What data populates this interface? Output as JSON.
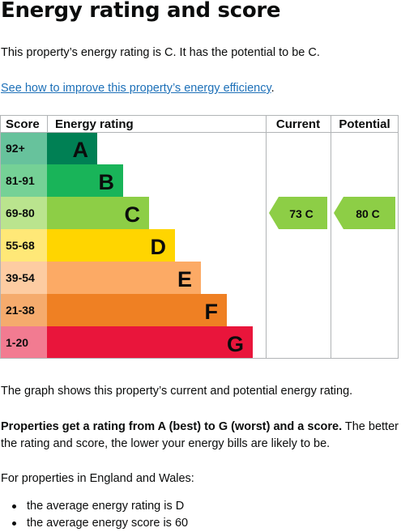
{
  "heading": "Energy rating and score",
  "intro": "This property’s energy rating is C. It has the potential to be C.",
  "improve_link": "See how to improve this property’s energy efficiency",
  "improve_link_suffix": ".",
  "table": {
    "headers": {
      "score": "Score",
      "rating": "Energy rating",
      "current": "Current",
      "potential": "Potential"
    },
    "bands": [
      {
        "score": "92+",
        "letter": "A",
        "color": "#008054",
        "score_bg": "#67c29c"
      },
      {
        "score": "81-91",
        "letter": "B",
        "color": "#19b459",
        "score_bg": "#75d196"
      },
      {
        "score": "69-80",
        "letter": "C",
        "color": "#8dce46",
        "score_bg": "#bae48e"
      },
      {
        "score": "55-68",
        "letter": "D",
        "color": "#ffd500",
        "score_bg": "#ffe877"
      },
      {
        "score": "39-54",
        "letter": "E",
        "color": "#fcaa65",
        "score_bg": "#fdcca2"
      },
      {
        "score": "21-38",
        "letter": "F",
        "color": "#ef8023",
        "score_bg": "#f5ab6d"
      },
      {
        "score": "1-20",
        "letter": "G",
        "color": "#e9153b",
        "score_bg": "#f27b91"
      }
    ],
    "current": {
      "label": "73 C",
      "score": 73,
      "band": "C",
      "color": "#8dce46"
    },
    "potential": {
      "label": "80 C",
      "score": 80,
      "band": "C",
      "color": "#8dce46"
    }
  },
  "graph_caption": "The graph shows this property’s current and potential energy rating.",
  "explain_bold": "Properties get a rating from A (best) to G (worst) and a score.",
  "explain_rest_line1": " The better",
  "explain_line2": "the rating and score, the lower your energy bills are likely to be.",
  "region_intro": "For properties in England and Wales:",
  "bullets": [
    "the average energy rating is D",
    "the average energy score is 60"
  ]
}
